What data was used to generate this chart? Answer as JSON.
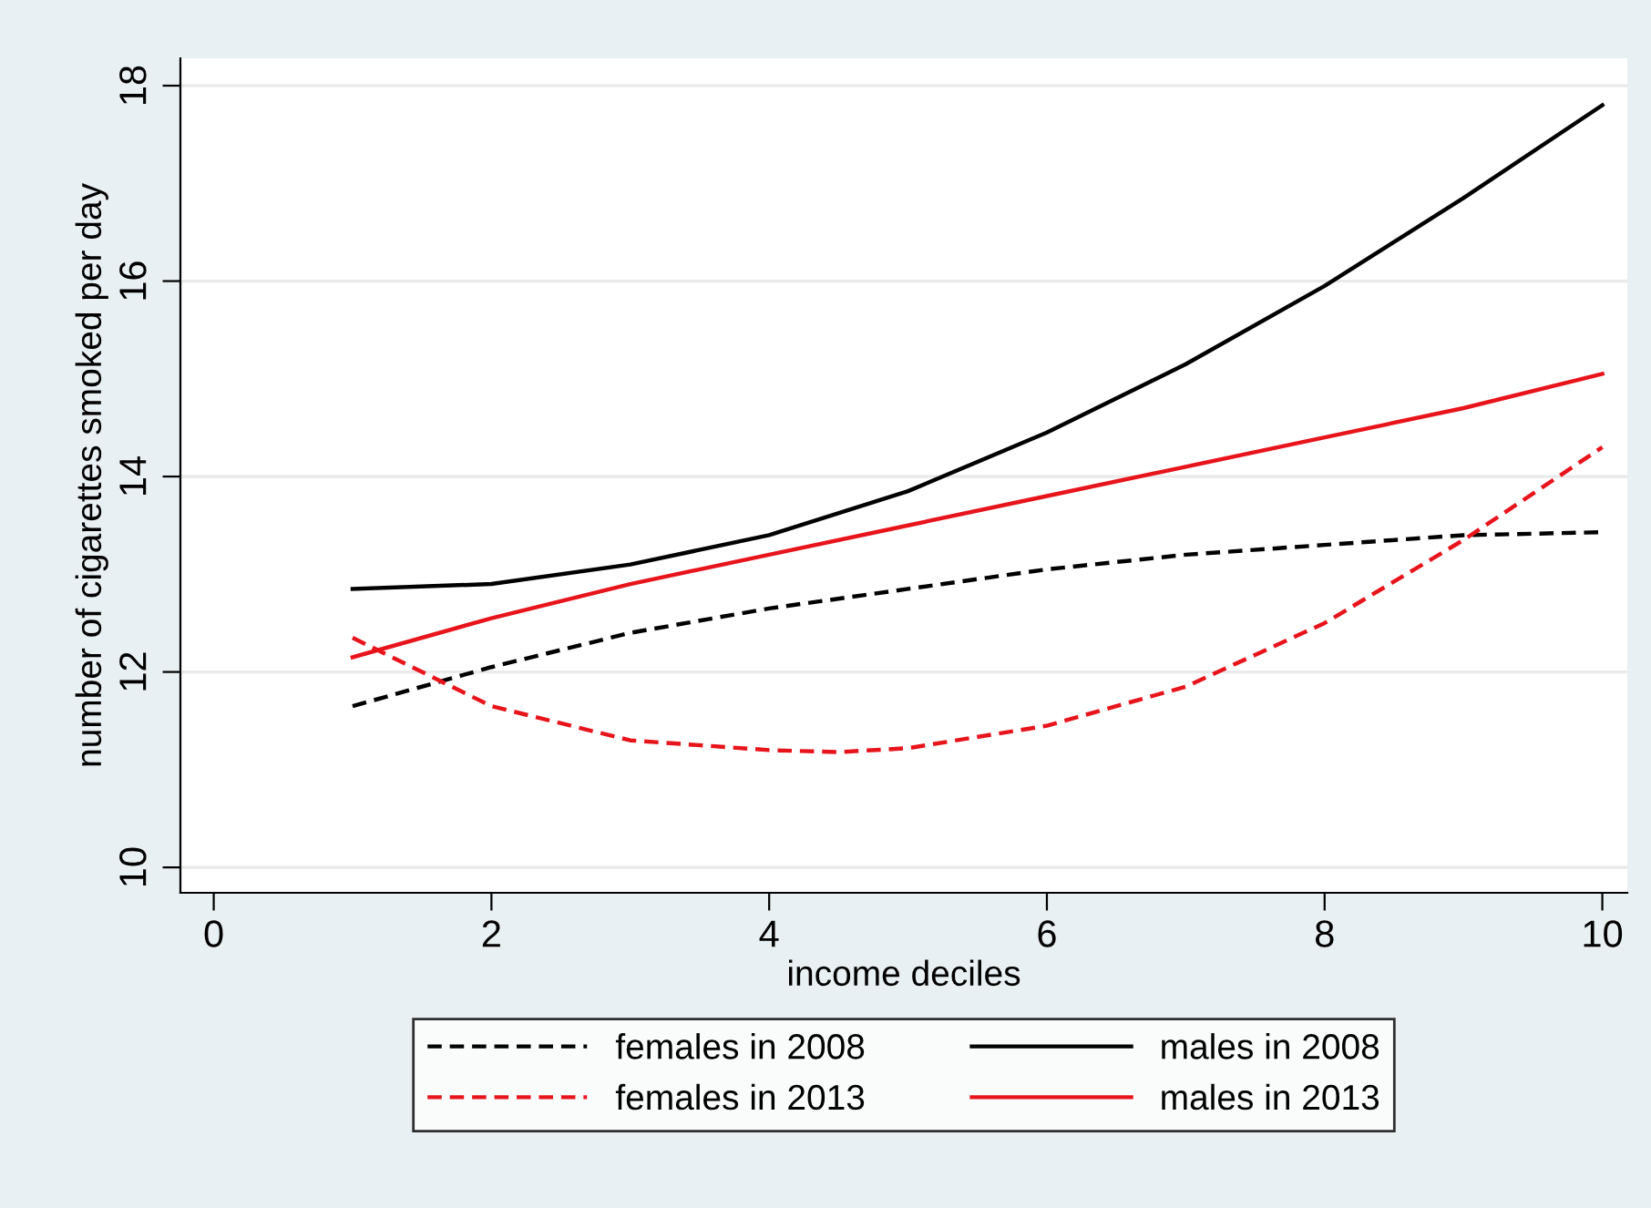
{
  "chart_data": {
    "type": "line",
    "xlabel": "income deciles",
    "ylabel": "number of cigarettes smoked per day",
    "x": [
      1,
      2,
      3,
      4,
      5,
      6,
      7,
      8,
      9,
      10
    ],
    "series": [
      {
        "name": "females in 2008",
        "color": "#000000",
        "line_style": "dashed",
        "values": [
          11.65,
          12.05,
          12.4,
          12.65,
          12.85,
          13.05,
          13.2,
          13.3,
          13.4,
          13.43
        ]
      },
      {
        "name": "females in 2013",
        "color": "#e8141c",
        "line_style": "dashed",
        "x": [
          1,
          2,
          3,
          4,
          4.5,
          5,
          6,
          7,
          8,
          9,
          10
        ],
        "values": [
          12.35,
          11.65,
          11.3,
          11.2,
          11.18,
          11.22,
          11.45,
          11.85,
          12.5,
          13.35,
          14.3
        ]
      },
      {
        "name": "males in 2008",
        "color": "#000000",
        "line_style": "solid",
        "values": [
          12.85,
          12.9,
          13.1,
          13.4,
          13.85,
          14.45,
          15.15,
          15.95,
          16.85,
          17.8
        ]
      },
      {
        "name": "males in 2013",
        "color": "#e8141c",
        "line_style": "solid",
        "values": [
          12.15,
          12.55,
          12.9,
          13.2,
          13.5,
          13.8,
          14.1,
          14.4,
          14.7,
          15.05
        ]
      }
    ],
    "xlim": [
      -0.24,
      10.18
    ],
    "ylim": [
      9.74,
      18.28
    ],
    "xticks": [
      0,
      2,
      4,
      6,
      8,
      10
    ],
    "yticks": [
      10,
      12,
      14,
      16,
      18
    ],
    "grid": "y",
    "legend": "bottom",
    "marker": "none"
  }
}
